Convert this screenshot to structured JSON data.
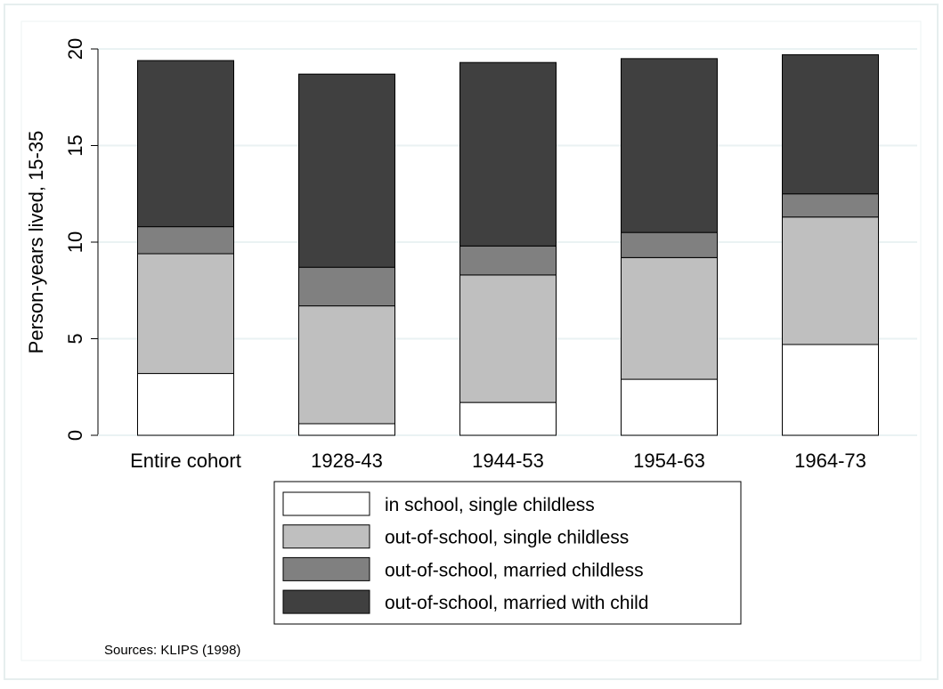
{
  "chart_data": {
    "type": "stacked_bar",
    "ylabel": "Person-years lived, 15-35",
    "categories": [
      "Entire cohort",
      "1928-43",
      "1944-53",
      "1954-63",
      "1964-73"
    ],
    "series": [
      {
        "name": "in school, single childless",
        "color": "#ffffff",
        "values": [
          3.2,
          0.6,
          1.7,
          2.9,
          4.7
        ]
      },
      {
        "name": "out-of-school, single childless",
        "color": "#bfbfbf",
        "values": [
          6.2,
          6.1,
          6.6,
          6.3,
          6.6
        ]
      },
      {
        "name": "out-of-school, married childless",
        "color": "#808080",
        "values": [
          1.4,
          2.0,
          1.5,
          1.3,
          1.2
        ]
      },
      {
        "name": "out-of-school, married with child",
        "color": "#404040",
        "values": [
          8.6,
          10.0,
          9.5,
          9.0,
          7.2
        ]
      }
    ],
    "ylim": [
      0,
      20
    ],
    "yticks": [
      0,
      5,
      10,
      15,
      20
    ],
    "grid": true,
    "legend": "bottom",
    "note": "Sources: KLIPS (1998)"
  }
}
